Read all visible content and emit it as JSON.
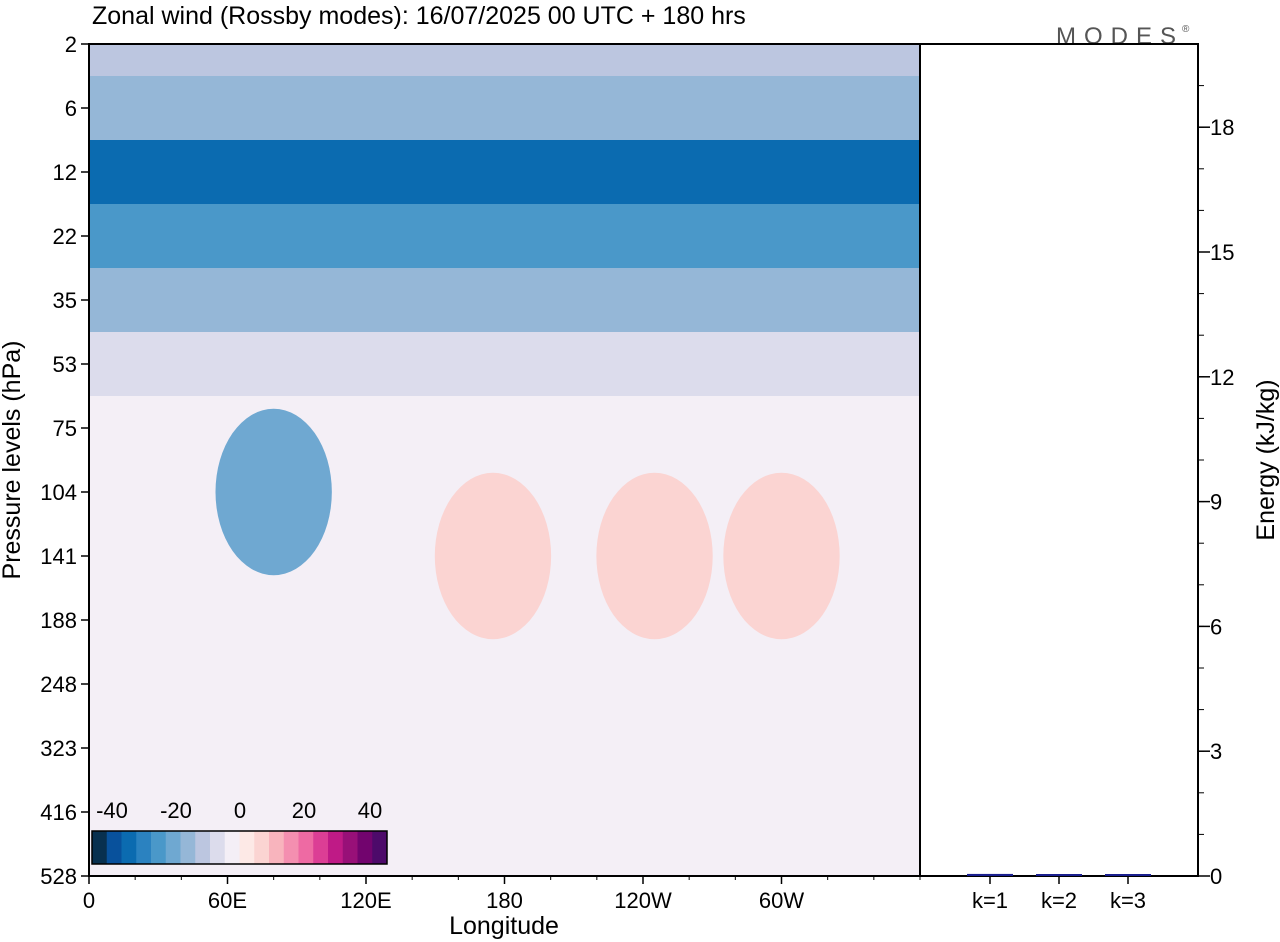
{
  "header": {
    "title": "Zonal wind (Rossby modes):  16/07/2025  00 UTC  + 180 hrs",
    "logo": "MODES",
    "logo_mark": "®"
  },
  "colors": {
    "negative_scale": [
      "#08304f",
      "#08519c",
      "#0b6bb0",
      "#2b82c0",
      "#4a98c9",
      "#6fa8d1",
      "#95b7d7",
      "#bcc6e0",
      "#dcdcec"
    ],
    "neutral": "#f4eff6",
    "positive_scale": [
      "#fde9e6",
      "#fbd4d2",
      "#f8b4bd",
      "#f48fb0",
      "#ee6aa3",
      "#dc3e95",
      "#bf1a86",
      "#981078",
      "#72046e",
      "#4d0a6a"
    ],
    "energy_bar": "#1a1f8f"
  },
  "colorbar": {
    "labels": [
      "-40",
      "-20",
      "0",
      "20",
      "40"
    ]
  },
  "chart_data": [
    {
      "type": "heatmap",
      "title": "Zonal wind (Rossby modes):  16/07/2025  00 UTC  + 180 hrs",
      "xlabel": "Longitude",
      "ylabel": "Pressure levels (hPa)",
      "x_ticks": [
        "0",
        "60E",
        "120E",
        "180",
        "120W",
        "60W"
      ],
      "x_tick_degrees": [
        0,
        60,
        120,
        180,
        240,
        300
      ],
      "xlim": [
        0,
        360
      ],
      "y_ticks": [
        "2",
        "6",
        "12",
        "22",
        "35",
        "53",
        "75",
        "104",
        "141",
        "188",
        "248",
        "323",
        "416",
        "528"
      ],
      "levels": [
        -40,
        -35,
        -30,
        -25,
        -20,
        -15,
        -10,
        -5,
        0,
        5,
        10,
        15,
        20,
        25,
        30,
        35,
        40,
        45
      ],
      "bands": [
        {
          "level": "2",
          "value": -8
        },
        {
          "level": "6",
          "value": -12
        },
        {
          "level": "12",
          "value": -32
        },
        {
          "level": "22",
          "value": -24
        },
        {
          "level": "35",
          "value": -14
        },
        {
          "level": "53",
          "value": -4
        },
        {
          "level": "75",
          "value": 1
        },
        {
          "level": "104",
          "value": 2
        },
        {
          "level": "141",
          "value": 2
        },
        {
          "level": "188",
          "value": 2
        },
        {
          "level": "248",
          "value": 1
        },
        {
          "level": "323",
          "value": 1
        },
        {
          "level": "416",
          "value": 1
        },
        {
          "level": "528",
          "value": 0
        }
      ],
      "features": [
        {
          "lon": 80,
          "level": "104",
          "value": -17
        },
        {
          "lon": 175,
          "level": "141",
          "value": 8
        },
        {
          "lon": 245,
          "level": "141",
          "value": 9
        },
        {
          "lon": 300,
          "level": "141",
          "value": 8
        }
      ]
    },
    {
      "type": "bar",
      "ylabel": "Energy (kJ/kg)",
      "categories": [
        "k=1",
        "k=2",
        "k=3"
      ],
      "values": [
        0.05,
        0.01,
        0.01
      ],
      "ylim": [
        0,
        20
      ],
      "y_ticks": [
        0,
        3,
        6,
        9,
        12,
        15,
        18
      ]
    }
  ]
}
